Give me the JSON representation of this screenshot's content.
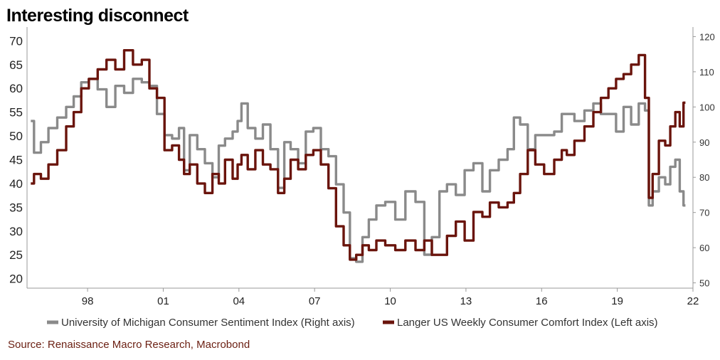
{
  "title": "Interesting disconnect",
  "source": "Source: Renaissance Macro Research, Macrobond",
  "colors": {
    "sentiment": "#8a8a8a",
    "comfort": "#6a140c",
    "source": "#6b1f12"
  },
  "chart_data": {
    "type": "line",
    "title": "Interesting disconnect",
    "x_tick_labels": [
      "98",
      "01",
      "04",
      "07",
      "10",
      "13",
      "16",
      "19",
      "22"
    ],
    "x_tick_years": [
      1998,
      2001,
      2004,
      2007,
      2010,
      2013,
      2016,
      2019,
      2022
    ],
    "x_range": [
      1995.6,
      2022.0
    ],
    "left_axis": {
      "label": "Langer US Weekly Consumer Comfort Index",
      "ylim": [
        18,
        72
      ],
      "ticks": [
        20,
        25,
        30,
        35,
        40,
        45,
        50,
        55,
        60,
        65,
        70
      ]
    },
    "right_axis": {
      "label": "University of Michigan Consumer Sentiment Index",
      "ylim": [
        48.5,
        121.5
      ],
      "ticks": [
        50,
        60,
        70,
        80,
        90,
        100,
        110,
        120
      ]
    },
    "legend": [
      {
        "name": "University of Michigan Consumer Sentiment Index (Right axis)",
        "axis": "right"
      },
      {
        "name": "Langer US Weekly Consumer Comfort Index (Left axis)",
        "axis": "left"
      }
    ],
    "series": [
      {
        "name": "University of Michigan Consumer Sentiment Index",
        "axis": "right",
        "x": [
          1995.75,
          1996.0,
          1996.3,
          1996.6,
          1997.0,
          1997.3,
          1997.6,
          1997.9,
          1998.2,
          1998.6,
          1998.9,
          1999.3,
          1999.6,
          2000.0,
          2000.3,
          2000.6,
          2000.9,
          2001.2,
          2001.5,
          2001.75,
          2001.9,
          2002.2,
          2002.5,
          2002.8,
          2003.1,
          2003.3,
          2003.6,
          2003.9,
          2004.0,
          2004.2,
          2004.5,
          2004.8,
          2005.1,
          2005.4,
          2005.7,
          2005.9,
          2006.2,
          2006.5,
          2006.8,
          2007.1,
          2007.4,
          2007.7,
          2008.0,
          2008.3,
          2008.5,
          2008.8,
          2009.0,
          2009.3,
          2009.6,
          2010.0,
          2010.4,
          2010.8,
          2011.2,
          2011.5,
          2011.8,
          2012.1,
          2012.4,
          2012.8,
          2013.1,
          2013.5,
          2013.8,
          2014.1,
          2014.5,
          2014.8,
          2015.0,
          2015.3,
          2015.6,
          2015.9,
          2016.3,
          2016.7,
          2016.9,
          2017.1,
          2017.5,
          2017.9,
          2018.2,
          2018.5,
          2018.8,
          2019.1,
          2019.4,
          2019.7,
          2020.0,
          2020.2,
          2020.3,
          2020.5,
          2020.8,
          2021.0,
          2021.2,
          2021.4,
          2021.55,
          2021.7
        ],
        "values": [
          96,
          87,
          90,
          94,
          97,
          100,
          103,
          107,
          108,
          105,
          100,
          106,
          104,
          108,
          107,
          106,
          98,
          92,
          91,
          94,
          82,
          92,
          88,
          84,
          80,
          89,
          91,
          93,
          96,
          101,
          94,
          91,
          95,
          88,
          77,
          90,
          88,
          84,
          93,
          94,
          88,
          86,
          78,
          70,
          57,
          56,
          63,
          68,
          72,
          73,
          68,
          76,
          73,
          58,
          63,
          76,
          78,
          75,
          82,
          84,
          76,
          82,
          85,
          88,
          97,
          95,
          88,
          92,
          92,
          93,
          98,
          98,
          96,
          99,
          101,
          98,
          98,
          93,
          100,
          95,
          101,
          99,
          72,
          76,
          80,
          78,
          83,
          85,
          76,
          72
        ]
      },
      {
        "name": "Langer US Weekly Consumer Comfort Index",
        "axis": "left",
        "x": [
          1995.75,
          1996.0,
          1996.3,
          1996.6,
          1997.0,
          1997.3,
          1997.6,
          1997.9,
          1998.2,
          1998.6,
          1998.9,
          1999.3,
          1999.6,
          2000.0,
          2000.3,
          2000.6,
          2000.9,
          2001.2,
          2001.5,
          2001.75,
          2001.9,
          2002.2,
          2002.5,
          2002.8,
          2003.1,
          2003.3,
          2003.6,
          2003.9,
          2004.0,
          2004.2,
          2004.5,
          2004.8,
          2005.1,
          2005.4,
          2005.7,
          2005.9,
          2006.2,
          2006.5,
          2006.8,
          2007.1,
          2007.4,
          2007.7,
          2008.0,
          2008.3,
          2008.5,
          2008.8,
          2009.0,
          2009.3,
          2009.6,
          2010.0,
          2010.4,
          2010.8,
          2011.2,
          2011.5,
          2011.8,
          2012.1,
          2012.4,
          2012.8,
          2013.1,
          2013.5,
          2013.8,
          2014.1,
          2014.5,
          2014.8,
          2015.0,
          2015.3,
          2015.6,
          2015.9,
          2016.3,
          2016.7,
          2016.9,
          2017.1,
          2017.5,
          2017.9,
          2018.2,
          2018.5,
          2018.8,
          2019.1,
          2019.4,
          2019.7,
          2020.0,
          2020.2,
          2020.3,
          2020.5,
          2020.8,
          2021.0,
          2021.2,
          2021.4,
          2021.55,
          2021.7
        ],
        "values": [
          40,
          42,
          41,
          44,
          47,
          52,
          55,
          60,
          62,
          64,
          66,
          64,
          68,
          65,
          66,
          60,
          58,
          47,
          48,
          45,
          42,
          44,
          40,
          38,
          42,
          40,
          45,
          41,
          44,
          46,
          43,
          47,
          44,
          43,
          38,
          41,
          45,
          43,
          46,
          47,
          44,
          39,
          31,
          27,
          24,
          25,
          27,
          26,
          28,
          27,
          26,
          28,
          26,
          28,
          25,
          25,
          29,
          32,
          28,
          34,
          33,
          36,
          35,
          36,
          38,
          42,
          47,
          44,
          42,
          45,
          47,
          46,
          49,
          52,
          55,
          58,
          60,
          62,
          63,
          65,
          67,
          58,
          37,
          42,
          49,
          48,
          52,
          55,
          52,
          57
        ]
      }
    ]
  }
}
